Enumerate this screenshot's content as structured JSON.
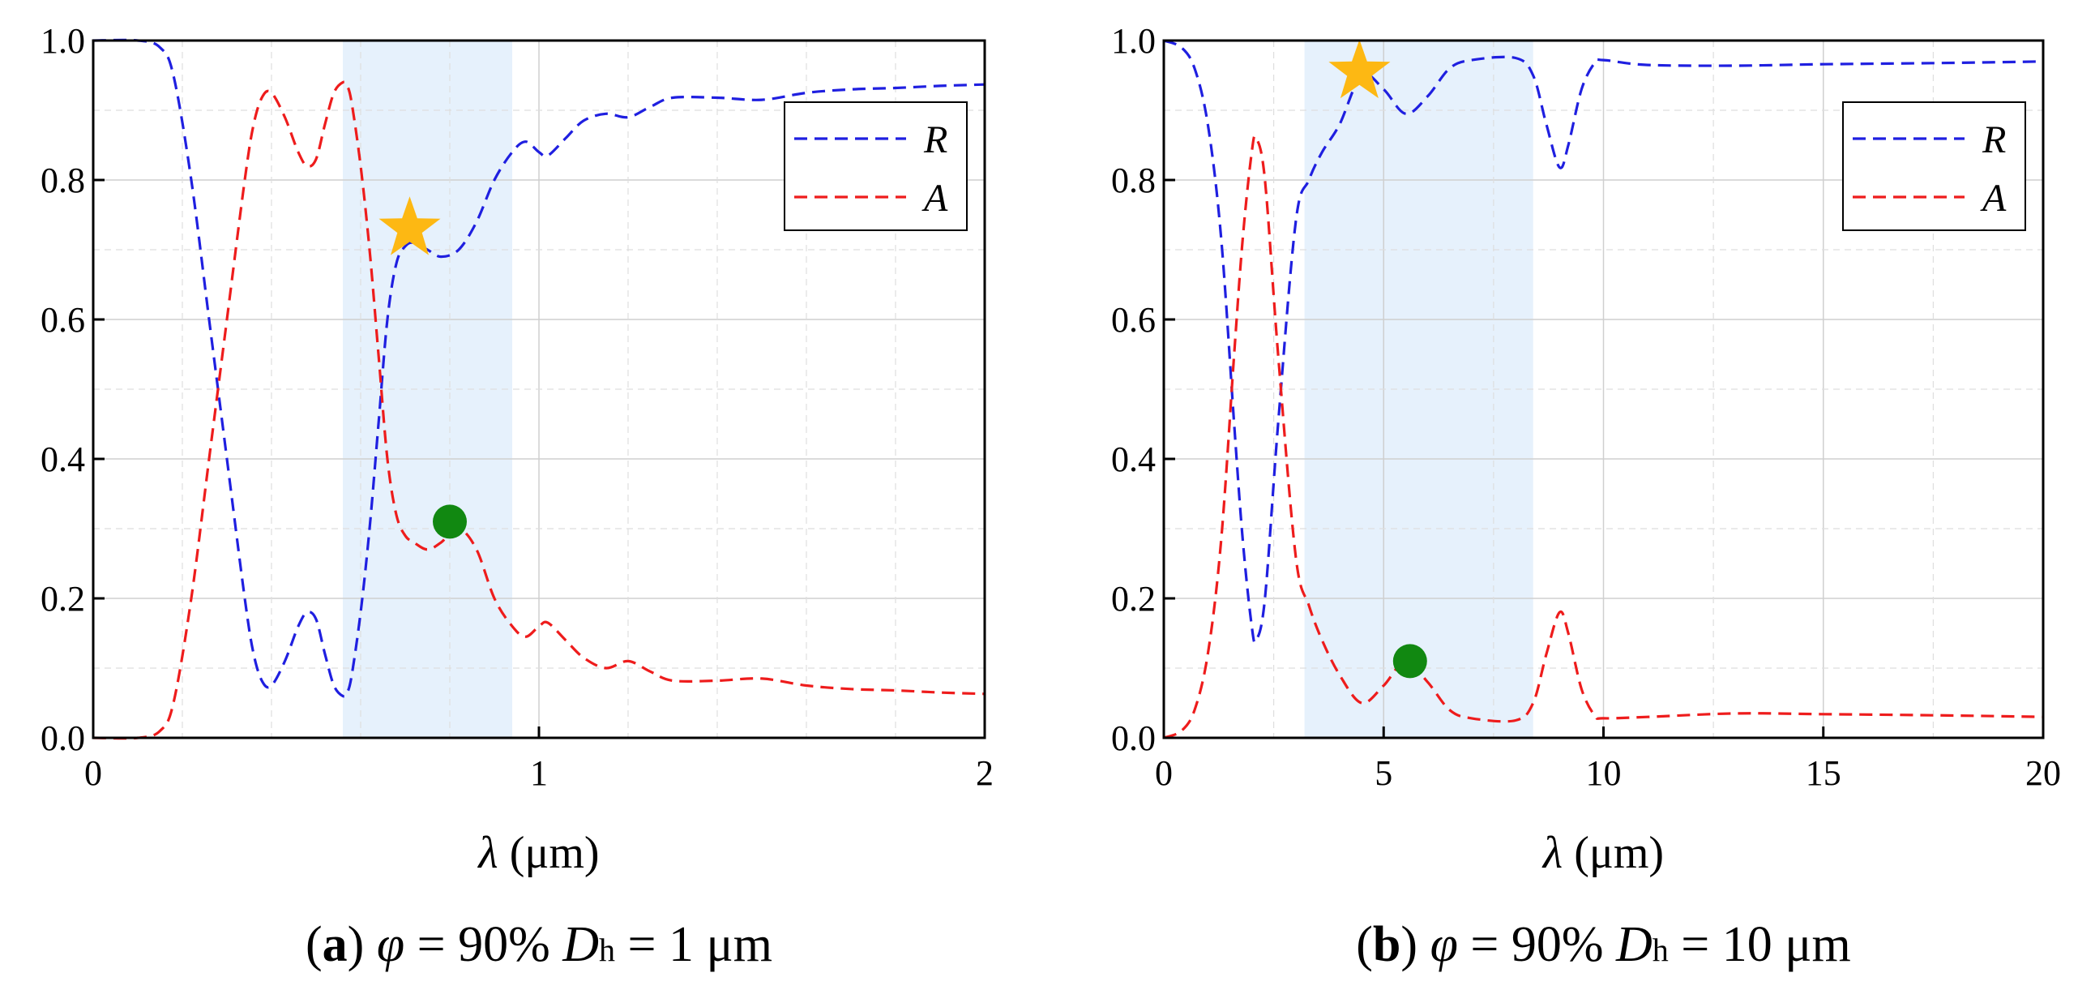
{
  "chart_data": [
    {
      "id": "a",
      "type": "line",
      "caption": {
        "label": "a",
        "phi_symbol": "φ",
        "phi_text": " = 90% ",
        "d_symbol": "D",
        "d_sub": "h",
        "d_text": " = 1 μm"
      },
      "xlabel": {
        "symbol": "λ",
        "unit": " (μm)"
      },
      "xlim": [
        0,
        2
      ],
      "ylim": [
        0,
        1
      ],
      "xticks": [
        0,
        1,
        2
      ],
      "yticks": [
        0,
        0.2,
        0.4,
        0.6,
        0.8,
        1.0
      ],
      "xticklabels": [
        "0",
        "1",
        "2"
      ],
      "yticklabels": [
        "0.0",
        "0.2",
        "0.4",
        "0.6",
        "0.8",
        "1.0"
      ],
      "xgrid_minor": [
        0.2,
        0.4,
        0.6,
        0.8,
        1.2,
        1.4,
        1.6,
        1.8
      ],
      "ygrid_minor": [
        0.1,
        0.3,
        0.5,
        0.7,
        0.9
      ],
      "shaded_region": [
        0.56,
        0.94
      ],
      "series": [
        {
          "name": "R",
          "color": "#1f1fe0",
          "x": [
            0,
            0.1,
            0.15,
            0.18,
            0.22,
            0.26,
            0.3,
            0.34,
            0.36,
            0.38,
            0.4,
            0.43,
            0.46,
            0.48,
            0.5,
            0.52,
            0.54,
            0.56,
            0.57,
            0.58,
            0.6,
            0.62,
            0.64,
            0.66,
            0.68,
            0.7,
            0.72,
            0.75,
            0.78,
            0.82,
            0.86,
            0.9,
            0.94,
            0.97,
            1.0,
            1.02,
            1.06,
            1.1,
            1.15,
            1.2,
            1.25,
            1.3,
            1.4,
            1.5,
            1.6,
            1.7,
            1.8,
            1.9,
            2.0
          ],
          "y": [
            1.0,
            1.0,
            0.99,
            0.95,
            0.8,
            0.6,
            0.4,
            0.2,
            0.12,
            0.08,
            0.075,
            0.11,
            0.16,
            0.18,
            0.17,
            0.12,
            0.075,
            0.06,
            0.065,
            0.09,
            0.18,
            0.3,
            0.45,
            0.6,
            0.68,
            0.705,
            0.71,
            0.7,
            0.69,
            0.7,
            0.74,
            0.8,
            0.84,
            0.855,
            0.84,
            0.835,
            0.86,
            0.885,
            0.895,
            0.89,
            0.905,
            0.918,
            0.918,
            0.915,
            0.925,
            0.93,
            0.932,
            0.935,
            0.937
          ]
        },
        {
          "name": "A",
          "color": "#ee1c1c",
          "x": [
            0,
            0.1,
            0.15,
            0.18,
            0.22,
            0.26,
            0.3,
            0.34,
            0.36,
            0.38,
            0.4,
            0.43,
            0.46,
            0.48,
            0.5,
            0.52,
            0.54,
            0.56,
            0.57,
            0.58,
            0.6,
            0.62,
            0.64,
            0.66,
            0.68,
            0.7,
            0.72,
            0.75,
            0.78,
            0.82,
            0.86,
            0.9,
            0.94,
            0.97,
            1.0,
            1.02,
            1.06,
            1.1,
            1.15,
            1.2,
            1.25,
            1.3,
            1.4,
            1.5,
            1.6,
            1.7,
            1.8,
            1.9,
            2.0
          ],
          "y": [
            0.0,
            0.0,
            0.01,
            0.05,
            0.2,
            0.4,
            0.6,
            0.8,
            0.88,
            0.92,
            0.925,
            0.89,
            0.84,
            0.82,
            0.83,
            0.88,
            0.925,
            0.94,
            0.935,
            0.91,
            0.82,
            0.7,
            0.55,
            0.4,
            0.32,
            0.29,
            0.28,
            0.27,
            0.28,
            0.3,
            0.27,
            0.2,
            0.16,
            0.145,
            0.16,
            0.165,
            0.14,
            0.115,
            0.1,
            0.11,
            0.095,
            0.082,
            0.082,
            0.085,
            0.075,
            0.07,
            0.068,
            0.065,
            0.063
          ]
        }
      ],
      "markers": [
        {
          "kind": "star",
          "color": "#fdb813",
          "x": 0.71,
          "y": 0.73
        },
        {
          "kind": "circle",
          "color": "#118811",
          "x": 0.8,
          "y": 0.31
        }
      ],
      "legend": {
        "position": "top-right",
        "entries": [
          "R",
          "A"
        ]
      }
    },
    {
      "id": "b",
      "type": "line",
      "caption": {
        "label": "b",
        "phi_symbol": "φ",
        "phi_text": " = 90% ",
        "d_symbol": "D",
        "d_sub": "h",
        "d_text": " = 10 μm"
      },
      "xlabel": {
        "symbol": "λ",
        "unit": " (μm)"
      },
      "xlim": [
        0,
        20
      ],
      "ylim": [
        0,
        1
      ],
      "xticks": [
        0,
        5,
        10,
        15,
        20
      ],
      "yticks": [
        0,
        0.2,
        0.4,
        0.6,
        0.8,
        1.0
      ],
      "xticklabels": [
        "0",
        "5",
        "10",
        "15",
        "20"
      ],
      "yticklabels": [
        "0.0",
        "0.2",
        "0.4",
        "0.6",
        "0.8",
        "1.0"
      ],
      "xgrid_minor": [
        2.5,
        7.5,
        12.5,
        17.5
      ],
      "ygrid_minor": [
        0.1,
        0.3,
        0.5,
        0.7,
        0.9
      ],
      "shaded_region": [
        3.2,
        8.4
      ],
      "series": [
        {
          "name": "R",
          "color": "#1f1fe0",
          "x": [
            0,
            0.4,
            0.7,
            1.0,
            1.3,
            1.6,
            1.8,
            2.0,
            2.1,
            2.3,
            2.6,
            3.0,
            3.3,
            3.6,
            4.0,
            4.5,
            5.0,
            5.5,
            6.0,
            6.5,
            7.0,
            8.0,
            8.4,
            8.7,
            9.0,
            9.2,
            9.5,
            9.8,
            10.0,
            11.0,
            13.0,
            15.0,
            18.0,
            20.0
          ],
          "y": [
            1.0,
            0.99,
            0.96,
            0.88,
            0.72,
            0.45,
            0.28,
            0.16,
            0.14,
            0.2,
            0.45,
            0.74,
            0.8,
            0.84,
            0.88,
            0.95,
            0.93,
            0.895,
            0.92,
            0.96,
            0.972,
            0.975,
            0.95,
            0.88,
            0.818,
            0.85,
            0.93,
            0.968,
            0.972,
            0.965,
            0.964,
            0.966,
            0.968,
            0.97
          ]
        },
        {
          "name": "A",
          "color": "#ee1c1c",
          "x": [
            0,
            0.4,
            0.7,
            1.0,
            1.3,
            1.6,
            1.8,
            2.0,
            2.1,
            2.3,
            2.6,
            3.0,
            3.3,
            3.6,
            4.0,
            4.5,
            5.0,
            5.5,
            6.0,
            6.5,
            7.0,
            8.0,
            8.4,
            8.7,
            9.0,
            9.2,
            9.5,
            9.8,
            10.0,
            11.0,
            13.0,
            15.0,
            18.0,
            20.0
          ],
          "y": [
            0.0,
            0.01,
            0.04,
            0.12,
            0.28,
            0.55,
            0.72,
            0.84,
            0.86,
            0.8,
            0.55,
            0.26,
            0.19,
            0.14,
            0.09,
            0.05,
            0.075,
            0.11,
            0.08,
            0.04,
            0.028,
            0.025,
            0.05,
            0.12,
            0.18,
            0.15,
            0.07,
            0.032,
            0.028,
            0.03,
            0.035,
            0.034,
            0.032,
            0.03
          ]
        }
      ],
      "markers": [
        {
          "kind": "star",
          "color": "#fdb813",
          "x": 4.45,
          "y": 0.955
        },
        {
          "kind": "circle",
          "color": "#118811",
          "x": 5.6,
          "y": 0.11
        }
      ],
      "legend": {
        "position": "top-right",
        "entries": [
          "R",
          "A"
        ]
      }
    }
  ]
}
